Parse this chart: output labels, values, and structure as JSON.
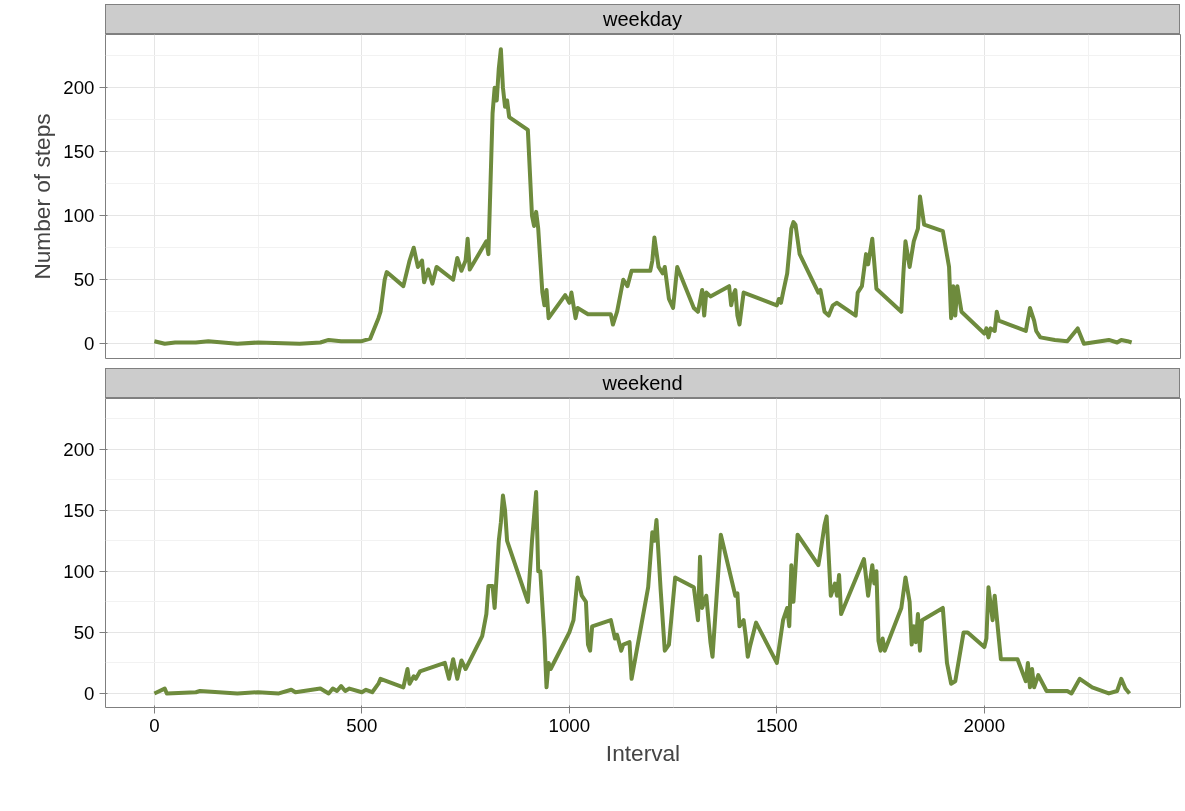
{
  "chart_data": [
    {
      "type": "line",
      "title": "weekday",
      "ylabel": "Number of steps",
      "tick_labels": "y",
      "grid": true,
      "x": [
        0,
        25,
        50,
        100,
        130,
        200,
        250,
        350,
        400,
        420,
        450,
        500,
        520,
        540,
        545,
        555,
        560,
        600,
        615,
        625,
        635,
        645,
        650,
        660,
        670,
        680,
        720,
        730,
        740,
        750,
        755,
        760,
        800,
        805,
        815,
        820,
        825,
        830,
        835,
        840,
        845,
        850,
        855,
        900,
        910,
        915,
        920,
        925,
        935,
        940,
        945,
        950,
        990,
        1000,
        1005,
        1015,
        1020,
        1035,
        1045,
        1100,
        1105,
        1115,
        1130,
        1140,
        1150,
        1195,
        1200,
        1205,
        1215,
        1225,
        1230,
        1240,
        1250,
        1260,
        1300,
        1310,
        1320,
        1325,
        1330,
        1340,
        1385,
        1390,
        1395,
        1400,
        1405,
        1410,
        1420,
        1500,
        1505,
        1510,
        1515,
        1525,
        1535,
        1540,
        1545,
        1555,
        1600,
        1605,
        1615,
        1625,
        1635,
        1645,
        1690,
        1695,
        1705,
        1715,
        1720,
        1730,
        1740,
        1800,
        1805,
        1810,
        1820,
        1830,
        1840,
        1845,
        1855,
        1900,
        1915,
        1920,
        1925,
        1930,
        1935,
        1945,
        2000,
        2005,
        2010,
        2015,
        2025,
        2030,
        2035,
        2060,
        2100,
        2110,
        2120,
        2125,
        2135,
        2170,
        2200,
        2225,
        2240,
        2300,
        2320,
        2330,
        2345,
        2355
      ],
      "series": [
        {
          "color": "#6e8b3d",
          "values": [
            2,
            0,
            1,
            1,
            2,
            0,
            1,
            0,
            1,
            3,
            2,
            2,
            4,
            20,
            25,
            50,
            56,
            45,
            65,
            75,
            60,
            65,
            48,
            58,
            47,
            60,
            50,
            67,
            57,
            65,
            82,
            58,
            80,
            70,
            180,
            200,
            190,
            215,
            230,
            200,
            185,
            190,
            177,
            167,
            100,
            92,
            103,
            90,
            40,
            30,
            42,
            20,
            38,
            32,
            40,
            20,
            28,
            25,
            23,
            23,
            15,
            25,
            50,
            45,
            57,
            57,
            65,
            83,
            60,
            55,
            60,
            35,
            28,
            60,
            28,
            25,
            42,
            22,
            40,
            37,
            45,
            30,
            38,
            42,
            22,
            15,
            40,
            30,
            35,
            32,
            40,
            55,
            90,
            95,
            93,
            70,
            40,
            42,
            25,
            22,
            30,
            32,
            22,
            40,
            45,
            70,
            62,
            82,
            43,
            25,
            55,
            80,
            60,
            80,
            90,
            115,
            93,
            88,
            60,
            20,
            45,
            22,
            45,
            25,
            8,
            12,
            5,
            12,
            10,
            25,
            18,
            15,
            10,
            28,
            18,
            10,
            5,
            3,
            2,
            12,
            0,
            3,
            1,
            3,
            2,
            1
          ]
        }
      ],
      "xlim": [
        -117.75,
        2472.75
      ],
      "xticks": [
        0,
        500,
        1000,
        1500,
        2000
      ],
      "ylim": [
        -11.5,
        241.5
      ],
      "yticks": [
        0,
        50,
        100,
        150,
        200
      ]
    },
    {
      "type": "line",
      "title": "weekend",
      "xlabel": "Interval",
      "grid": true,
      "x": [
        0,
        25,
        30,
        100,
        110,
        200,
        250,
        300,
        330,
        340,
        400,
        420,
        430,
        440,
        450,
        460,
        470,
        500,
        510,
        525,
        540,
        545,
        600,
        610,
        615,
        625,
        630,
        640,
        700,
        710,
        720,
        730,
        740,
        750,
        790,
        800,
        805,
        815,
        820,
        830,
        835,
        840,
        845,
        850,
        900,
        910,
        920,
        925,
        930,
        940,
        945,
        950,
        955,
        1000,
        1010,
        1020,
        1030,
        1040,
        1045,
        1050,
        1055,
        1100,
        1110,
        1115,
        1125,
        1130,
        1145,
        1150,
        1190,
        1200,
        1205,
        1210,
        1220,
        1230,
        1240,
        1255,
        1300,
        1310,
        1315,
        1320,
        1330,
        1340,
        1345,
        1365,
        1400,
        1405,
        1410,
        1420,
        1425,
        1430,
        1435,
        1450,
        1500,
        1515,
        1525,
        1530,
        1535,
        1540,
        1550,
        1600,
        1605,
        1615,
        1620,
        1630,
        1640,
        1645,
        1650,
        1655,
        1710,
        1720,
        1730,
        1735,
        1740,
        1745,
        1750,
        1755,
        1760,
        1800,
        1810,
        1820,
        1825,
        1830,
        1835,
        1840,
        1845,
        1850,
        1900,
        1910,
        1920,
        1930,
        1950,
        1960,
        2000,
        2005,
        2010,
        2020,
        2025,
        2035,
        2040,
        2060,
        2080,
        2100,
        2105,
        2110,
        2115,
        2120,
        2130,
        2150,
        2200,
        2210,
        2230,
        2260,
        2300,
        2320,
        2330,
        2340,
        2350
      ],
      "series": [
        {
          "color": "#6e8b3d",
          "values": [
            0,
            4,
            0,
            1,
            2,
            0,
            1,
            0,
            3,
            1,
            4,
            0,
            4,
            2,
            6,
            2,
            4,
            1,
            3,
            1,
            8,
            12,
            5,
            20,
            8,
            14,
            12,
            18,
            25,
            12,
            28,
            12,
            27,
            20,
            47,
            65,
            88,
            88,
            70,
            125,
            140,
            162,
            150,
            125,
            75,
            125,
            165,
            100,
            100,
            45,
            5,
            25,
            20,
            50,
            60,
            95,
            80,
            75,
            40,
            35,
            55,
            60,
            45,
            48,
            35,
            40,
            42,
            12,
            87,
            132,
            125,
            142,
            85,
            35,
            40,
            95,
            87,
            60,
            112,
            70,
            80,
            42,
            30,
            130,
            80,
            82,
            55,
            60,
            47,
            30,
            38,
            58,
            25,
            60,
            70,
            55,
            105,
            75,
            130,
            105,
            115,
            138,
            145,
            80,
            90,
            80,
            97,
            65,
            110,
            80,
            105,
            90,
            100,
            43,
            35,
            45,
            35,
            70,
            95,
            75,
            40,
            55,
            42,
            65,
            35,
            60,
            70,
            25,
            8,
            10,
            50,
            50,
            38,
            45,
            87,
            60,
            80,
            45,
            28,
            28,
            28,
            10,
            25,
            5,
            20,
            5,
            15,
            2,
            2,
            0,
            12,
            5,
            0,
            2,
            12,
            4,
            0
          ]
        }
      ],
      "xlim": [
        -117.75,
        2472.75
      ],
      "xticks": [
        0,
        500,
        1000,
        1500,
        2000
      ],
      "ylim": [
        -11.5,
        241.5
      ],
      "yticks": [
        0,
        50,
        100,
        150,
        200
      ]
    }
  ]
}
